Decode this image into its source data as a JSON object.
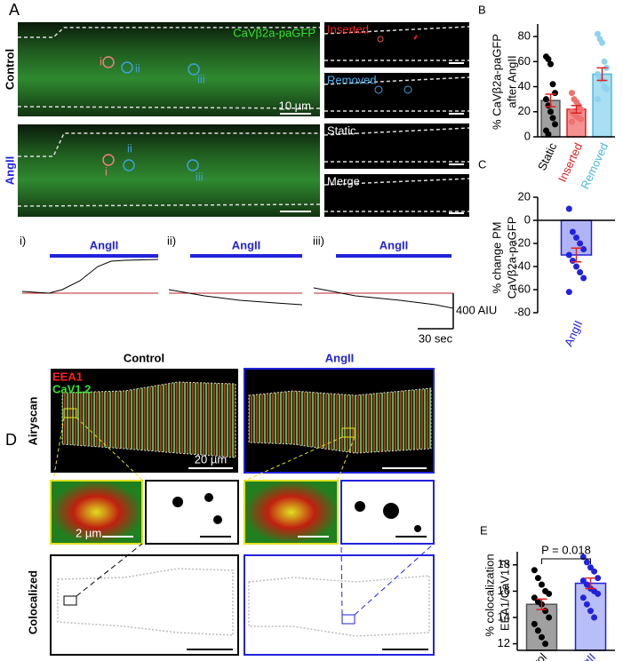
{
  "figure": {
    "A": {
      "label": "A",
      "rows": [
        "Control",
        "AngII"
      ],
      "channel": "CaVβ2a-paGFP",
      "rois": [
        "i",
        "ii",
        "iii"
      ],
      "scale": "10 µm",
      "insets": [
        "Inserted",
        "Removed",
        "Static",
        "Merge"
      ],
      "traces": [
        "i)",
        "ii)",
        "iii)"
      ],
      "stimulus": "AngII",
      "scale_y": "400 AIU",
      "scale_x": "30 sec"
    },
    "D": {
      "label": "D",
      "conditions": [
        "Control",
        "AngII"
      ],
      "channels": [
        "EEA1",
        "CaV1.2"
      ],
      "rows": [
        "Airyscan",
        "Colocalized"
      ],
      "scale_large": "20 µm",
      "scale_small": "2 µm"
    }
  },
  "chart_data": [
    {
      "type": "bar",
      "panel": "B",
      "ylabel": [
        "% CaVβ2a-paGFP",
        "after AngII"
      ],
      "categories": [
        "Static",
        "Inserted",
        "Removed"
      ],
      "category_colors": [
        "#000000",
        "#e02020",
        "#4ab8e0"
      ],
      "colors": [
        "#a0a0a0",
        "#f59090",
        "#a8dff2"
      ],
      "edge_colors": [
        "#555555",
        "#e02020",
        "#4ab8e0"
      ],
      "values": [
        29,
        22,
        50
      ],
      "errors": [
        5,
        3,
        5
      ],
      "points": [
        [
          64,
          62,
          58,
          42,
          35,
          30,
          25,
          20,
          15,
          10,
          5,
          2
        ],
        [
          35,
          30,
          28,
          25,
          22,
          20,
          18,
          16,
          15,
          14,
          12
        ],
        [
          82,
          78,
          75,
          60,
          55,
          50,
          48,
          45,
          40,
          38,
          30
        ]
      ],
      "point_colors": [
        "#000000",
        "#f07070",
        "#8fd3ee"
      ],
      "ylim": [
        0,
        90
      ],
      "yticks": [
        0,
        20,
        40,
        60,
        80
      ]
    },
    {
      "type": "bar",
      "panel": "C",
      "ylabel": [
        "% change PM",
        "CaVβ2a-paGFP"
      ],
      "categories": [
        "AngII"
      ],
      "category_colors": [
        "#2222dd"
      ],
      "colors": [
        "#b0b4f4"
      ],
      "edge_colors": [
        "#2222dd"
      ],
      "values": [
        -30
      ],
      "errors": [
        6
      ],
      "points": [
        [
          10,
          -10,
          -15,
          -20,
          -25,
          -30,
          -35,
          -40,
          -45,
          -50,
          -62
        ]
      ],
      "point_colors": [
        "#2222dd"
      ],
      "ylim": [
        -80,
        20
      ],
      "yticks": [
        -80,
        -60,
        -40,
        -20,
        0,
        20
      ]
    },
    {
      "type": "bar",
      "panel": "E",
      "ylabel": [
        "% colocalization",
        "EEA1/CaV1.2"
      ],
      "categories": [
        "Control",
        "AngII"
      ],
      "category_colors": [
        "#000000",
        "#2222dd"
      ],
      "colors": [
        "#a0a0a0",
        "#b8bef6"
      ],
      "edge_colors": [
        "#555555",
        "#2222dd"
      ],
      "values": [
        15.0,
        16.6
      ],
      "errors": [
        0.4,
        0.4
      ],
      "points": [
        [
          17.6,
          17.0,
          16.5,
          16.0,
          15.8,
          15.5,
          15.2,
          15.0,
          14.5,
          14.0,
          13.5,
          13.0,
          12.5,
          12.0
        ],
        [
          18.6,
          18.2,
          17.8,
          17.5,
          17.0,
          16.8,
          16.5,
          16.2,
          16.0,
          15.8,
          15.5,
          15.0,
          14.5,
          14.0
        ]
      ],
      "point_colors": [
        "#000000",
        "#2222dd"
      ],
      "ylim": [
        11.5,
        19
      ],
      "yticks": [
        12,
        14,
        16,
        18
      ],
      "annotation": "P = 0.018"
    }
  ]
}
